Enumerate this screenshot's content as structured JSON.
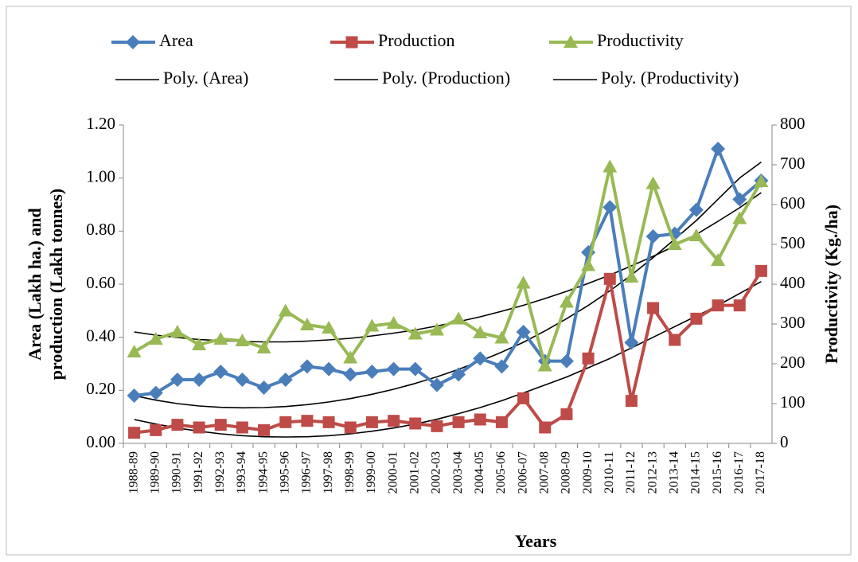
{
  "chart_data": {
    "type": "line",
    "x_label": "Years",
    "y_label": [
      "Area (Lakh ha.) and",
      "production (Lakh tonnes)"
    ],
    "y2_label": "Productivity (Kg./ha)",
    "categories": [
      "1988-89",
      "1989-90",
      "1990-91",
      "1991-92",
      "1992-93",
      "1993-94",
      "1994-95",
      "1995-96",
      "1996-97",
      "1997-98",
      "1998-99",
      "1999-00",
      "2000-01",
      "2001-02",
      "2002-03",
      "2003-04",
      "2004-05",
      "2005-06",
      "2006-07",
      "2007-08",
      "2008-09",
      "2009-10",
      "2010-11",
      "2011-12",
      "2012-13",
      "2013-14",
      "2014-15",
      "2015-16",
      "2016-17",
      "2017-18"
    ],
    "ylim": [
      0,
      1.2
    ],
    "yticks": [
      {
        "value": 0,
        "label": "0.00"
      },
      {
        "value": 0.2,
        "label": "0.20"
      },
      {
        "value": 0.4,
        "label": "0.40"
      },
      {
        "value": 0.6,
        "label": "0.60"
      },
      {
        "value": 0.8,
        "label": "0.80"
      },
      {
        "value": 1.0,
        "label": "1.00"
      },
      {
        "value": 1.2,
        "label": "1.20"
      }
    ],
    "y2lim": [
      0,
      800
    ],
    "y2ticks": [
      0,
      100,
      200,
      300,
      400,
      500,
      600,
      700,
      800
    ],
    "grid": false,
    "legend": "top",
    "series": [
      {
        "name": "Area",
        "color": "#4a7ebb",
        "marker": "diamond",
        "values": [
          0.18,
          0.19,
          0.24,
          0.24,
          0.27,
          0.24,
          0.21,
          0.24,
          0.29,
          0.28,
          0.26,
          0.27,
          0.28,
          0.28,
          0.22,
          0.26,
          0.32,
          0.29,
          0.42,
          0.31,
          0.31,
          0.72,
          0.89,
          0.38,
          0.78,
          0.79,
          0.88,
          1.11,
          0.92,
          0.99
        ]
      },
      {
        "name": "Production",
        "color": "#be4b48",
        "marker": "square",
        "values": [
          0.04,
          0.05,
          0.07,
          0.06,
          0.07,
          0.06,
          0.05,
          0.08,
          0.085,
          0.08,
          0.06,
          0.08,
          0.085,
          0.075,
          0.065,
          0.08,
          0.09,
          0.08,
          0.17,
          0.06,
          0.11,
          0.32,
          0.62,
          0.16,
          0.51,
          0.39,
          0.47,
          0.52,
          0.52,
          0.65
        ]
      },
      {
        "name": "Productivity",
        "color": "#98b954",
        "marker": "triangle",
        "axis": "y2",
        "values": [
          230,
          262,
          280,
          248,
          262,
          258,
          240,
          333,
          298,
          290,
          215,
          295,
          302,
          275,
          285,
          313,
          278,
          265,
          403,
          195,
          355,
          447,
          695,
          418,
          653,
          500,
          522,
          460,
          565,
          658
        ]
      },
      {
        "name": "Poly. (Area)",
        "color": "#000000",
        "values": [
          0.18,
          0.163,
          0.15,
          0.141,
          0.136,
          0.134,
          0.135,
          0.139,
          0.146,
          0.156,
          0.169,
          0.185,
          0.204,
          0.226,
          0.251,
          0.279,
          0.31,
          0.344,
          0.381,
          0.424,
          0.47,
          0.52,
          0.575,
          0.635,
          0.7,
          0.77,
          0.84,
          0.92,
          1.0,
          1.06
        ]
      },
      {
        "name": "Poly. (Production)",
        "color": "#000000",
        "values": [
          0.09,
          0.073,
          0.058,
          0.046,
          0.036,
          0.029,
          0.025,
          0.024,
          0.025,
          0.029,
          0.036,
          0.046,
          0.058,
          0.073,
          0.091,
          0.112,
          0.135,
          0.161,
          0.19,
          0.22,
          0.25,
          0.285,
          0.32,
          0.36,
          0.4,
          0.44,
          0.48,
          0.52,
          0.565,
          0.61
        ]
      },
      {
        "name": "Poly. (Productivity)",
        "color": "#000000",
        "axis": "y2",
        "values": [
          280,
          272,
          266,
          261,
          258,
          256,
          255,
          255,
          257,
          260,
          264,
          270,
          277,
          285,
          295,
          306,
          318,
          332,
          347,
          364,
          382,
          402,
          423,
          446,
          470,
          496,
          525,
          558,
          592,
          630
        ]
      }
    ]
  }
}
